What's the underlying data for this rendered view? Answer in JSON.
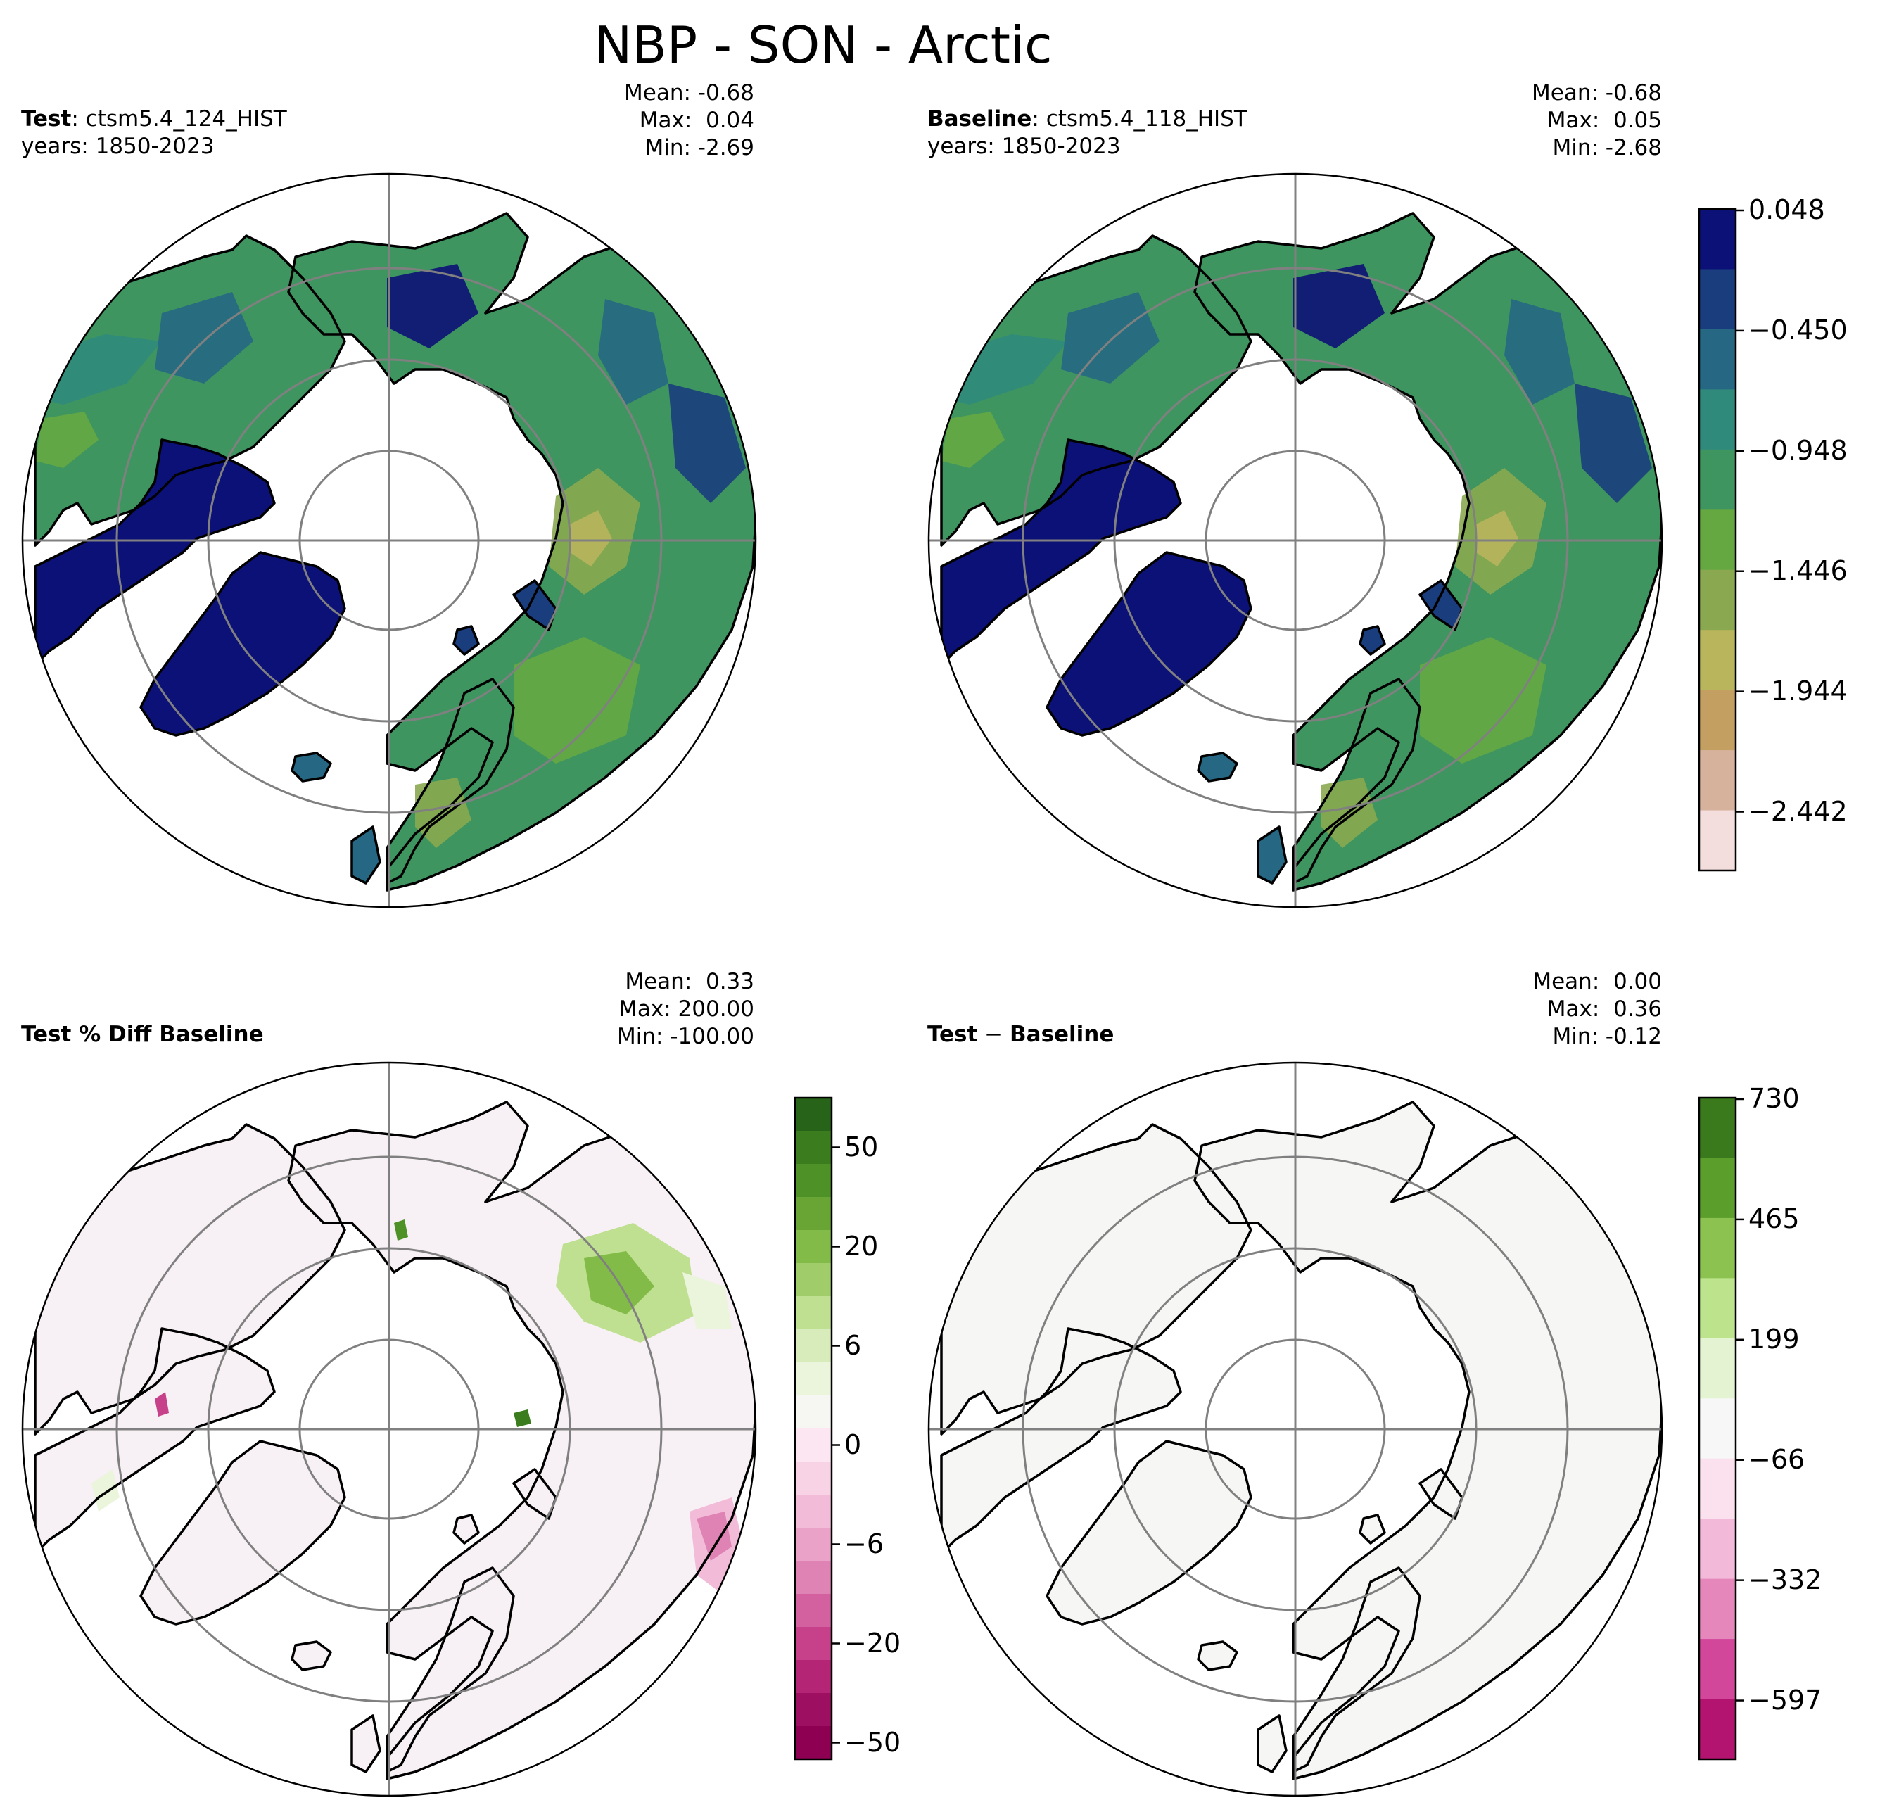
{
  "figure": {
    "title": "NBP - SON - Arctic"
  },
  "panels": {
    "test": {
      "label": "Test",
      "sep": ": ",
      "case": "ctsm5.4_124_HIST",
      "years": "years: 1850-2023",
      "mean": "Mean: -0.68",
      "max": "Max:  0.04",
      "min": "Min: -2.69"
    },
    "baseline": {
      "label": "Baseline",
      "sep": ": ",
      "case": "ctsm5.4_118_HIST",
      "years": "years: 1850-2023",
      "mean": "Mean: -0.68",
      "max": "Max:  0.05",
      "min": "Min: -2.68"
    },
    "pct_diff": {
      "label": "Test % Diff Baseline",
      "mean": "Mean:  0.33",
      "max": "Max: 200.00",
      "min": "Min: -100.00"
    },
    "diff": {
      "label_a": "Test",
      "label_op": " − ",
      "label_b": "Baseline",
      "mean": "Mean:  0.00",
      "max": "Max:  0.36",
      "min": "Min: -0.12"
    }
  },
  "chart_data": [
    {
      "type": "heatmap",
      "panel": "test",
      "projection": "north polar stereographic",
      "variable": "NBP",
      "season": "SON",
      "region": "Arctic",
      "stats": {
        "mean": -0.68,
        "max": 0.04,
        "min": -2.69
      },
      "colorbar": "shared with baseline"
    },
    {
      "type": "heatmap",
      "panel": "baseline",
      "projection": "north polar stereographic",
      "stats": {
        "mean": -0.68,
        "max": 0.05,
        "min": -2.68
      },
      "colorbar": {
        "ticks": [
          "0.048",
          "−0.450",
          "−0.948",
          "−1.446",
          "−1.944",
          "−2.442"
        ],
        "range": [
          -2.69,
          0.048
        ],
        "colors": [
          "#0c1177",
          "#1a3d7d",
          "#266883",
          "#2f8a7c",
          "#3f9560",
          "#65a842",
          "#8aa850",
          "#b8b55c",
          "#c3a061",
          "#d6b19c",
          "#f3dedd"
        ]
      }
    },
    {
      "type": "heatmap",
      "panel": "pct_diff",
      "projection": "north polar stereographic",
      "stats": {
        "mean": 0.33,
        "max": 200.0,
        "min": -100.0
      },
      "colorbar": {
        "ticks": [
          "50",
          "20",
          "6",
          "0",
          "−6",
          "−20",
          "−50"
        ],
        "colors": [
          "#276419",
          "#3b7c1e",
          "#4e9126",
          "#68a535",
          "#82bb48",
          "#a0cc6a",
          "#bfe091",
          "#d8ecbb",
          "#ebf5dc",
          "#f6f6f2",
          "#fbe6f1",
          "#f8d3e6",
          "#f2bcd9",
          "#eaa2c9",
          "#df83b5",
          "#d3619f",
          "#c6418a",
          "#b52576",
          "#9d0f61",
          "#8e0152"
        ]
      }
    },
    {
      "type": "heatmap",
      "panel": "diff",
      "projection": "north polar stereographic",
      "stats": {
        "mean": 0.0,
        "max": 0.36,
        "min": -0.12
      },
      "colorbar": {
        "ticks": [
          "730",
          "465",
          "199",
          "−66",
          "−332",
          "−597"
        ],
        "colors": [
          "#3a7a1c",
          "#5c9e2c",
          "#8cc350",
          "#bde48d",
          "#e4f3d2",
          "#f7f7f7",
          "#fbe1ee",
          "#f3b9d9",
          "#e587bb",
          "#d2479a",
          "#b3146f"
        ]
      }
    }
  ]
}
